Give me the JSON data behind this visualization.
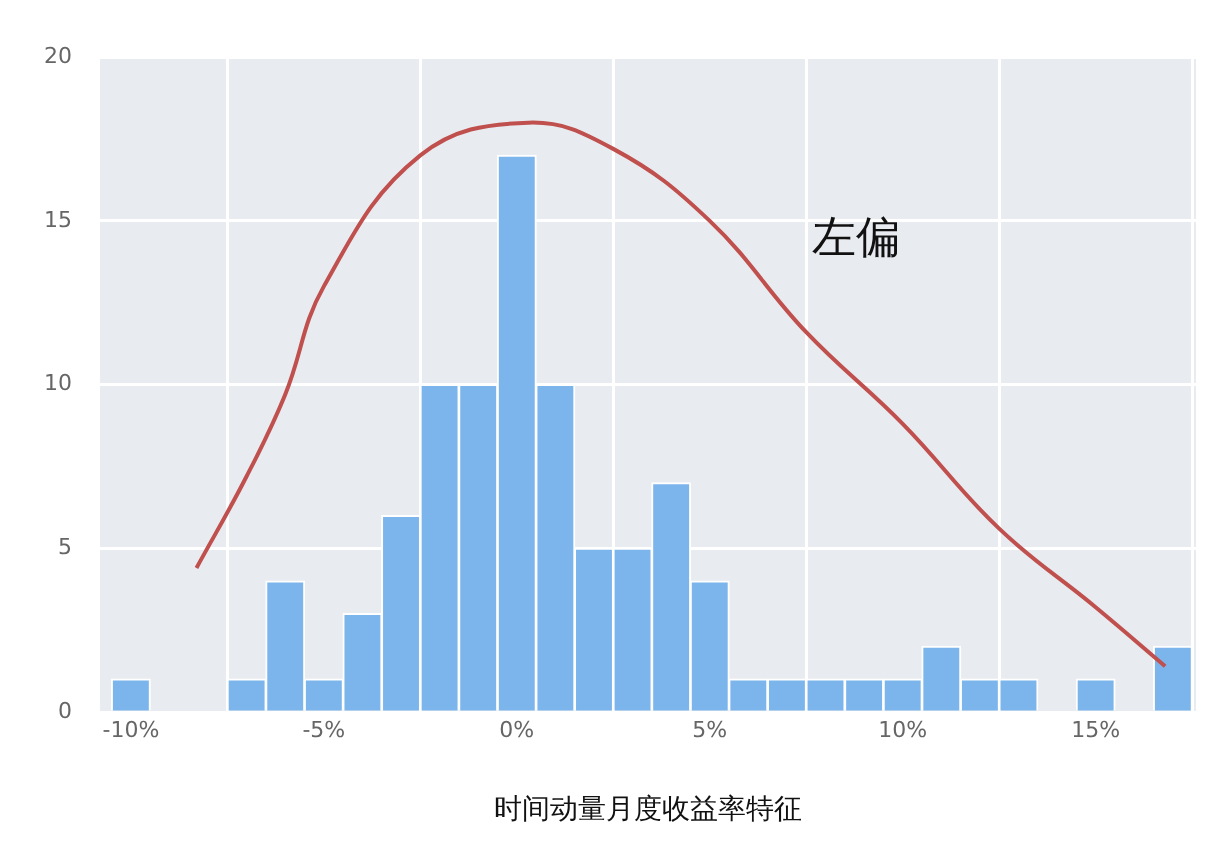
{
  "chart_data": {
    "type": "histogram",
    "xlabel": "时间动量月度收益率特征",
    "bins": [
      -10.5,
      -9.5,
      -8.5,
      -7.5,
      -6.5,
      -5.5,
      -4.5,
      -3.5,
      -2.5,
      -1.5,
      -0.5,
      0.5,
      1.5,
      2.5,
      3.5,
      4.5,
      5.5,
      6.5,
      7.5,
      8.5,
      9.5,
      10.5,
      11.5,
      12.5,
      13.5,
      14.5,
      15.5,
      16.5,
      17.5
    ],
    "values": [
      1,
      0,
      0,
      1,
      4,
      1,
      3,
      6,
      10,
      10,
      17,
      10,
      5,
      5,
      7,
      4,
      1,
      1,
      1,
      1,
      1,
      2,
      1,
      1,
      0,
      1,
      0,
      2
    ],
    "color": "#7cb5ec",
    "series": [
      {
        "type": "line",
        "color": "#c0504d",
        "x": [
          -8.3,
          -7,
          -6,
          -5,
          -2.5,
          0.3,
          2.5,
          5,
          7.5,
          10,
          12.5,
          15,
          16.8
        ],
        "values": [
          4.4,
          7.2,
          9.7,
          13,
          17,
          18,
          17.2,
          15,
          11.6,
          8.8,
          5.6,
          3.2,
          1.4
        ]
      }
    ],
    "annotations": [
      "左偏"
    ],
    "xlim": [
      -10.8,
      17.6
    ],
    "xticks": [
      {
        "value": -10,
        "label": "-10%"
      },
      {
        "value": -5,
        "label": "-5%"
      },
      {
        "value": 0,
        "label": "0%"
      },
      {
        "value": 5,
        "label": "5%"
      },
      {
        "value": 10,
        "label": "10%"
      },
      {
        "value": 15,
        "label": "15%"
      }
    ],
    "ylim": [
      0,
      20
    ],
    "yticks": [
      0,
      5,
      10,
      15,
      20
    ],
    "grid": true,
    "legend": false
  }
}
